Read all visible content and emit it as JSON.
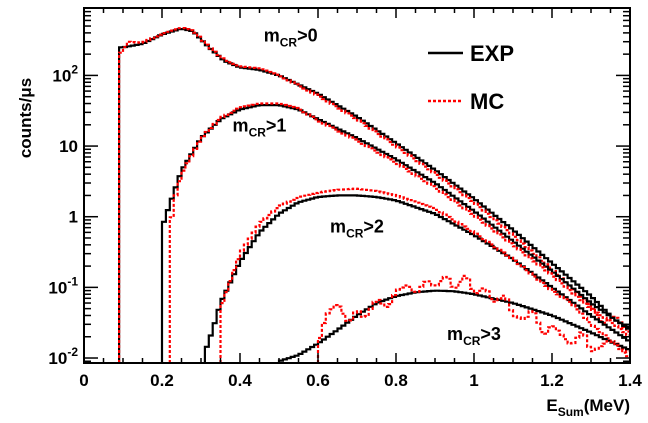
{
  "chart_data": {
    "type": "line",
    "title": "",
    "xlabel": "E_Sum(MeV)",
    "xlabel_main": "E",
    "xlabel_sub": "Sum",
    "xlabel_unit": "(MeV)",
    "ylabel": "counts/μs",
    "xlim": [
      0,
      1.4
    ],
    "ylim": [
      0.0085,
      900
    ],
    "yscale": "log",
    "grid": false,
    "legend_position": "top-right",
    "x_ticks": [
      0,
      0.2,
      0.4,
      0.6,
      0.8,
      1,
      1.2,
      1.4
    ],
    "x_tick_labels": [
      "0",
      "0.2",
      "0.4",
      "0.6",
      "0.8",
      "1",
      "1.2",
      "1.4"
    ],
    "y_ticks": [
      {
        "base": "10",
        "exp": "-2",
        "value": 0.01
      },
      {
        "base": "10",
        "exp": "-1",
        "value": 0.1
      },
      {
        "base": "1",
        "exp": "",
        "value": 1
      },
      {
        "base": "10",
        "exp": "",
        "value": 10
      },
      {
        "base": "10",
        "exp": "2",
        "value": 100
      }
    ],
    "legend": [
      {
        "label": "EXP",
        "style": "solid",
        "color": "#000000"
      },
      {
        "label": "MC",
        "style": "dotted",
        "color": "#ff0000"
      }
    ],
    "annotations": [
      {
        "main": "m",
        "sub": "CR",
        "tail": ">0",
        "x": 0.53,
        "y": 300
      },
      {
        "main": "m",
        "sub": "CR",
        "tail": ">1",
        "x": 0.45,
        "y": 16
      },
      {
        "main": "m",
        "sub": "CR",
        "tail": ">2",
        "x": 0.7,
        "y": 0.6
      },
      {
        "main": "m",
        "sub": "CR",
        "tail": ">3",
        "x": 1.0,
        "y": 0.018
      }
    ],
    "series": [
      {
        "group": "m_CR>0",
        "source": "EXP",
        "color": "#000000",
        "style": "solid",
        "x_start": 0.09,
        "x_end": 1.4,
        "y_floor": 0.0085,
        "points": [
          [
            0.1,
            250
          ],
          [
            0.15,
            280
          ],
          [
            0.2,
            380
          ],
          [
            0.25,
            460
          ],
          [
            0.28,
            420
          ],
          [
            0.32,
            250
          ],
          [
            0.36,
            160
          ],
          [
            0.4,
            130
          ],
          [
            0.45,
            120
          ],
          [
            0.5,
            100
          ],
          [
            0.6,
            55
          ],
          [
            0.7,
            26
          ],
          [
            0.8,
            11
          ],
          [
            0.9,
            4.6
          ],
          [
            1.0,
            1.8
          ],
          [
            1.1,
            0.65
          ],
          [
            1.2,
            0.22
          ],
          [
            1.3,
            0.075
          ],
          [
            1.36,
            0.035
          ],
          [
            1.4,
            0.027
          ]
        ]
      },
      {
        "group": "m_CR>0",
        "source": "MC",
        "color": "#ff0000",
        "style": "dotted",
        "x_start": 0.09,
        "x_end": 1.4,
        "y_floor": 0.0085,
        "points": [
          [
            0.1,
            210
          ],
          [
            0.11,
            300
          ],
          [
            0.15,
            290
          ],
          [
            0.2,
            390
          ],
          [
            0.25,
            475
          ],
          [
            0.28,
            430
          ],
          [
            0.32,
            255
          ],
          [
            0.36,
            165
          ],
          [
            0.4,
            135
          ],
          [
            0.45,
            125
          ],
          [
            0.5,
            100
          ],
          [
            0.6,
            52
          ],
          [
            0.7,
            24
          ],
          [
            0.8,
            10
          ],
          [
            0.9,
            4.1
          ],
          [
            1.0,
            1.6
          ],
          [
            1.1,
            0.55
          ],
          [
            1.2,
            0.18
          ],
          [
            1.3,
            0.055
          ],
          [
            1.33,
            0.03
          ],
          [
            1.36,
            0.04
          ],
          [
            1.4,
            0.022
          ]
        ]
      },
      {
        "group": "m_CR>1",
        "source": "EXP",
        "color": "#000000",
        "style": "solid",
        "x_start": 0.2,
        "x_end": 1.4,
        "y_floor": 0.0085,
        "points": [
          [
            0.2,
            0.7
          ],
          [
            0.22,
            1.5
          ],
          [
            0.25,
            4.5
          ],
          [
            0.3,
            13
          ],
          [
            0.35,
            24
          ],
          [
            0.4,
            33
          ],
          [
            0.45,
            38
          ],
          [
            0.5,
            38
          ],
          [
            0.55,
            33
          ],
          [
            0.6,
            24
          ],
          [
            0.7,
            13
          ],
          [
            0.8,
            6.5
          ],
          [
            0.9,
            3
          ],
          [
            1.0,
            1.2
          ],
          [
            1.1,
            0.45
          ],
          [
            1.2,
            0.17
          ],
          [
            1.3,
            0.06
          ],
          [
            1.4,
            0.025
          ]
        ]
      },
      {
        "group": "m_CR>1",
        "source": "MC",
        "color": "#ff0000",
        "style": "dotted",
        "x_start": 0.22,
        "x_end": 1.4,
        "y_floor": 0.0085,
        "points": [
          [
            0.22,
            0.6
          ],
          [
            0.23,
            1.6
          ],
          [
            0.25,
            4
          ],
          [
            0.3,
            13
          ],
          [
            0.35,
            25
          ],
          [
            0.4,
            35
          ],
          [
            0.45,
            40
          ],
          [
            0.5,
            40
          ],
          [
            0.55,
            34
          ],
          [
            0.6,
            23
          ],
          [
            0.7,
            12
          ],
          [
            0.8,
            5.8
          ],
          [
            0.9,
            2.6
          ],
          [
            1.0,
            1.05
          ],
          [
            1.1,
            0.4
          ],
          [
            1.2,
            0.15
          ],
          [
            1.3,
            0.05
          ],
          [
            1.36,
            0.03
          ],
          [
            1.4,
            0.02
          ]
        ]
      },
      {
        "group": "m_CR>2",
        "source": "EXP",
        "color": "#000000",
        "style": "solid",
        "x_start": 0.31,
        "x_end": 1.4,
        "y_floor": 0.0085,
        "points": [
          [
            0.31,
            0.012
          ],
          [
            0.33,
            0.025
          ],
          [
            0.35,
            0.06
          ],
          [
            0.4,
            0.23
          ],
          [
            0.45,
            0.6
          ],
          [
            0.5,
            1.1
          ],
          [
            0.55,
            1.6
          ],
          [
            0.6,
            1.9
          ],
          [
            0.65,
            2
          ],
          [
            0.7,
            2
          ],
          [
            0.75,
            1.9
          ],
          [
            0.8,
            1.7
          ],
          [
            0.9,
            1.1
          ],
          [
            1.0,
            0.55
          ],
          [
            1.1,
            0.25
          ],
          [
            1.2,
            0.1
          ],
          [
            1.3,
            0.04
          ],
          [
            1.4,
            0.017
          ]
        ]
      },
      {
        "group": "m_CR>2",
        "source": "MC",
        "color": "#ff0000",
        "style": "dotted",
        "x_start": 0.35,
        "x_end": 1.4,
        "y_floor": 0.0085,
        "points": [
          [
            0.35,
            0.05
          ],
          [
            0.4,
            0.3
          ],
          [
            0.45,
            0.8
          ],
          [
            0.5,
            1.4
          ],
          [
            0.55,
            1.9
          ],
          [
            0.6,
            2.2
          ],
          [
            0.65,
            2.4
          ],
          [
            0.7,
            2.5
          ],
          [
            0.75,
            2.3
          ],
          [
            0.8,
            2
          ],
          [
            0.9,
            1.3
          ],
          [
            1.0,
            0.6
          ],
          [
            1.1,
            0.25
          ],
          [
            1.2,
            0.09
          ],
          [
            1.25,
            0.06
          ],
          [
            1.3,
            0.03
          ],
          [
            1.35,
            0.018
          ],
          [
            1.4,
            0.012
          ]
        ]
      },
      {
        "group": "m_CR>3",
        "source": "EXP",
        "color": "#000000",
        "style": "solid",
        "x_start": 0.5,
        "x_end": 1.4,
        "y_floor": 0.0085,
        "points": [
          [
            0.5,
            0.009
          ],
          [
            0.55,
            0.011
          ],
          [
            0.6,
            0.016
          ],
          [
            0.65,
            0.025
          ],
          [
            0.7,
            0.04
          ],
          [
            0.75,
            0.06
          ],
          [
            0.8,
            0.075
          ],
          [
            0.85,
            0.085
          ],
          [
            0.9,
            0.09
          ],
          [
            0.95,
            0.088
          ],
          [
            1.0,
            0.08
          ],
          [
            1.1,
            0.06
          ],
          [
            1.2,
            0.04
          ],
          [
            1.3,
            0.023
          ],
          [
            1.35,
            0.017
          ],
          [
            1.4,
            0.013
          ]
        ]
      },
      {
        "group": "m_CR>3",
        "source": "MC",
        "color": "#ff0000",
        "style": "dotted",
        "x_start": 0.6,
        "x_end": 1.4,
        "y_floor": 0.0085,
        "points": [
          [
            0.6,
            0.015
          ],
          [
            0.62,
            0.04
          ],
          [
            0.65,
            0.06
          ],
          [
            0.68,
            0.03
          ],
          [
            0.7,
            0.05
          ],
          [
            0.72,
            0.035
          ],
          [
            0.75,
            0.07
          ],
          [
            0.78,
            0.05
          ],
          [
            0.8,
            0.09
          ],
          [
            0.83,
            0.11
          ],
          [
            0.85,
            0.08
          ],
          [
            0.88,
            0.13
          ],
          [
            0.9,
            0.1
          ],
          [
            0.93,
            0.15
          ],
          [
            0.95,
            0.09
          ],
          [
            0.98,
            0.16
          ],
          [
            1.0,
            0.08
          ],
          [
            1.03,
            0.1
          ],
          [
            1.05,
            0.06
          ],
          [
            1.08,
            0.08
          ],
          [
            1.1,
            0.04
          ],
          [
            1.13,
            0.035
          ],
          [
            1.15,
            0.05
          ],
          [
            1.18,
            0.02
          ],
          [
            1.2,
            0.03
          ],
          [
            1.25,
            0.015
          ],
          [
            1.28,
            0.025
          ],
          [
            1.3,
            0.012
          ],
          [
            1.35,
            0.018
          ],
          [
            1.4,
            0.01
          ]
        ]
      }
    ]
  }
}
